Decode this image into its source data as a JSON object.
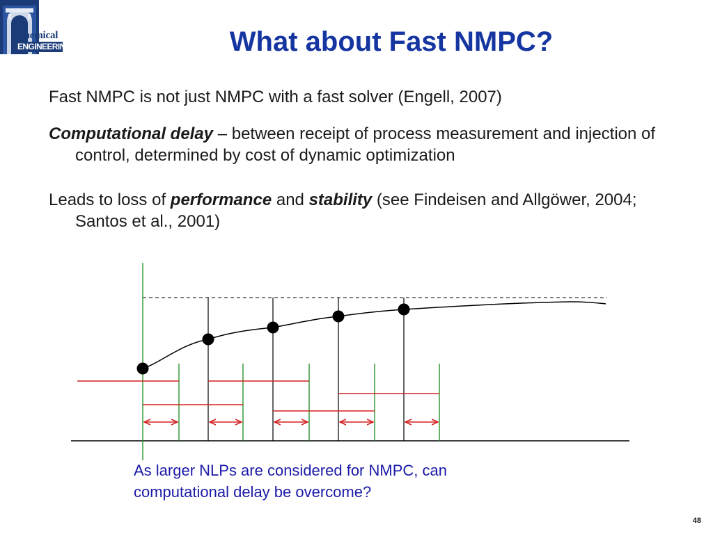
{
  "logo": {
    "line1": "Chemical",
    "line2": "ENGINEERING"
  },
  "slide": {
    "title": "What about Fast NMPC?",
    "bullet1": "Fast NMPC is not just NMPC with a fast solver (Engell, 2007)",
    "bullet2_em": "Computational delay",
    "bullet2_text": " – between receipt of process measurement and injection of control, determined by cost of dynamic optimization",
    "bullet3_a": "Leads to loss of ",
    "bullet3_em1": "performance",
    "bullet3_b": " and ",
    "bullet3_em2": "stability",
    "bullet3_c": " (see Findeisen and Allgöwer, 2004; Santos et al., 2001)",
    "question": "As larger NLPs are considered for NMPC, can computational delay be overcome?",
    "page_number": "48"
  },
  "colors": {
    "title": "#1535a0",
    "question": "#1a1aa8",
    "green_line": "#1a8a1a",
    "red_line": "#d42020",
    "black": "#000000"
  }
}
